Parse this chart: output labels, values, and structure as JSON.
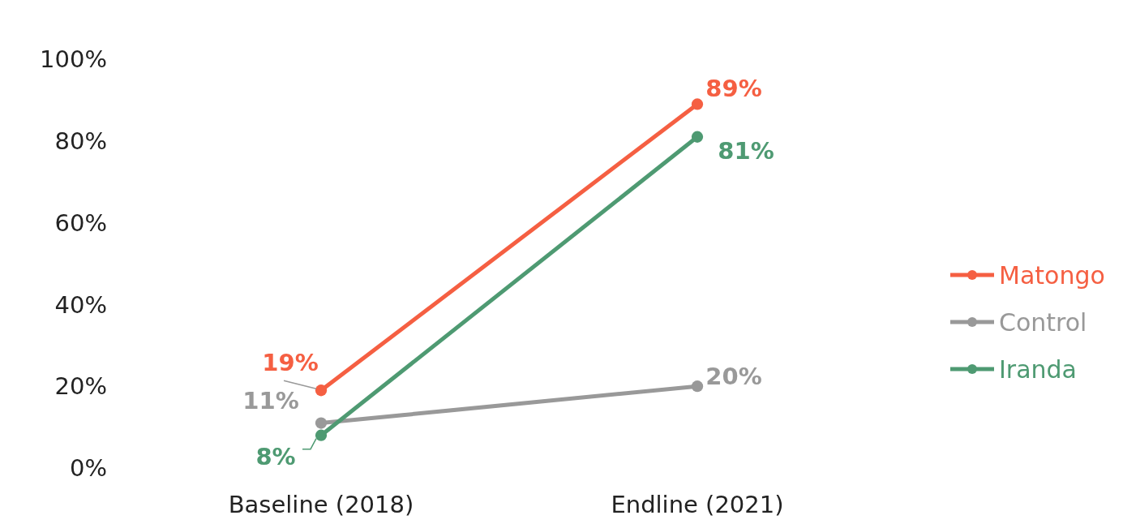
{
  "chart_data": {
    "type": "line",
    "categories": [
      "Baseline (2018)",
      "Endline (2021)"
    ],
    "series": [
      {
        "name": "Matongo",
        "color": "#f55f42",
        "values": [
          19,
          89
        ],
        "value_labels": [
          "19%",
          "89%"
        ]
      },
      {
        "name": "Control",
        "color": "#999999",
        "values": [
          11,
          20
        ],
        "value_labels": [
          "11%",
          "20%"
        ]
      },
      {
        "name": "Iranda",
        "color": "#4e9a72",
        "values": [
          8,
          81
        ],
        "value_labels": [
          "8%",
          "81%"
        ]
      }
    ],
    "ylim": [
      0,
      100
    ],
    "yticks": [
      {
        "value": 0,
        "label": "0%"
      },
      {
        "value": 20,
        "label": "20%"
      },
      {
        "value": 40,
        "label": "40%"
      },
      {
        "value": 60,
        "label": "60%"
      },
      {
        "value": 80,
        "label": "80%"
      },
      {
        "value": 100,
        "label": "100%"
      }
    ],
    "grid": false,
    "legend": "right",
    "marker": "circle",
    "line_style": "solid"
  }
}
